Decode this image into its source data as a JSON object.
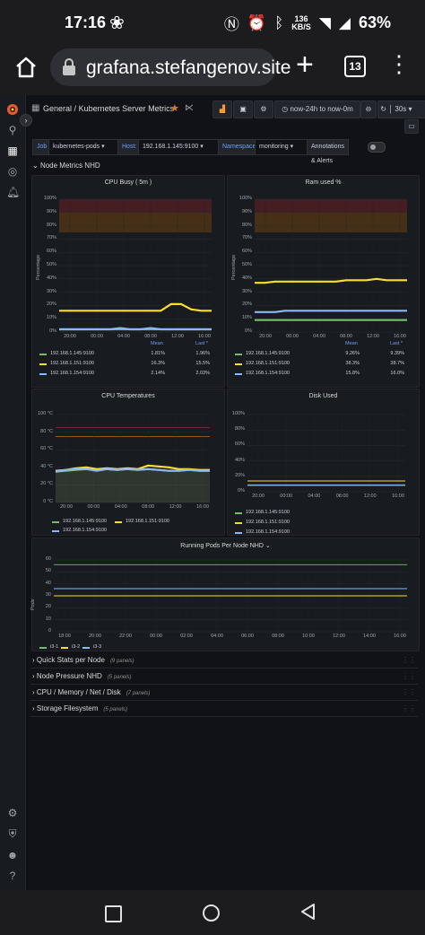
{
  "status_bar": {
    "time": "17:16",
    "network_speed": "136",
    "network_unit": "KB/S",
    "battery": "63%"
  },
  "browser": {
    "url": "grafana.stefangenov.site",
    "tab_count": "13"
  },
  "toolbar": {
    "breadcrumb_root": "General",
    "breadcrumb_sep": "/",
    "dashboard_title": "Kubernetes Server Metrics",
    "time_range": "now-24h to now-0m",
    "refresh_interval": "30s"
  },
  "variables": {
    "job_label": "Job",
    "job_value": "kubernetes-pods",
    "host_label": "Host:",
    "host_value": "192.168.1.145:9100",
    "namespace_label": "Namespace",
    "namespace_value": "monitoring",
    "annotations_label": "Annotations & Alerts"
  },
  "rows": {
    "node_metrics": "Node Metrics NHD",
    "quick_stats": "Quick Stats per Node",
    "quick_stats_count": "(9 panels)",
    "node_pressure": "Node Pressure NHD",
    "node_pressure_count": "(5 panels)",
    "cpu_mem": "CPU / Memory / Net / Disk",
    "cpu_mem_count": "(7 panels)",
    "storage": "Storage Filesystem",
    "storage_count": "(5 panels)"
  },
  "colors": {
    "green": "#73bf69",
    "yellow": "#fade2a",
    "blue": "#8ab8ff",
    "orange": "#ff9830",
    "red_band": "#4a1e22",
    "orange_band": "#4a3215",
    "accent": "#6e9fff"
  },
  "legend_headers": {
    "mean": "Mean",
    "last": "Last *"
  },
  "chart_data": [
    {
      "id": "cpu_busy",
      "type": "line",
      "title": "CPU Busy ( 5m )",
      "ylabel": "Percentage",
      "ylim": [
        0,
        100
      ],
      "yticks": [
        "0%",
        "10%",
        "20%",
        "30%",
        "40%",
        "50%",
        "60%",
        "70%",
        "80%",
        "90%",
        "100%"
      ],
      "xticks": [
        "20:00",
        "00:00",
        "04:00",
        "08:00",
        "12:00",
        "16:00"
      ],
      "thresholds": [
        {
          "from": 75,
          "to": 90,
          "color": "orange"
        },
        {
          "from": 90,
          "to": 100,
          "color": "red"
        }
      ],
      "series": [
        {
          "name": "192.168.1.145:9100",
          "color": "green",
          "mean": "1.81%",
          "last": "1.96%",
          "values": [
            2,
            2,
            2,
            2,
            2,
            2,
            2,
            2,
            2,
            2,
            2,
            2,
            2,
            2,
            2,
            2
          ]
        },
        {
          "name": "192.168.1.151:9100",
          "color": "yellow",
          "mean": "16.3%",
          "last": "15.5%",
          "values": [
            16,
            16,
            16,
            16,
            16,
            16,
            16,
            16,
            16,
            16,
            16,
            21,
            21,
            17,
            16,
            16
          ]
        },
        {
          "name": "192.168.1.154:9100",
          "color": "blue",
          "mean": "2.14%",
          "last": "2.03%",
          "values": [
            2,
            2,
            2,
            2,
            2,
            2,
            3,
            2,
            2,
            3,
            2,
            2,
            2,
            2,
            2,
            2
          ]
        }
      ]
    },
    {
      "id": "ram_used",
      "type": "line",
      "title": "Ram used %",
      "ylabel": "Percentage",
      "ylim": [
        0,
        100
      ],
      "yticks": [
        "0%",
        "10%",
        "20%",
        "30%",
        "40%",
        "50%",
        "60%",
        "70%",
        "80%",
        "90%",
        "100%"
      ],
      "xticks": [
        "20:00",
        "00:00",
        "04:00",
        "08:00",
        "12:00",
        "16:00"
      ],
      "thresholds": [
        {
          "from": 75,
          "to": 90,
          "color": "orange"
        },
        {
          "from": 90,
          "to": 100,
          "color": "red"
        }
      ],
      "series": [
        {
          "name": "192.168.1.145:9100",
          "color": "green",
          "mean": "9.26%",
          "last": "9.39%",
          "values": [
            9,
            9,
            9,
            9,
            9,
            9,
            9,
            9,
            9,
            9,
            9,
            9,
            9,
            9,
            9,
            9
          ]
        },
        {
          "name": "192.168.1.151:9100",
          "color": "yellow",
          "mean": "38.3%",
          "last": "38.7%",
          "values": [
            37,
            37,
            38,
            38,
            38,
            38,
            38,
            38,
            38,
            39,
            39,
            39,
            40,
            39,
            39,
            39
          ]
        },
        {
          "name": "192.168.1.154:9100",
          "color": "blue",
          "mean": "15.8%",
          "last": "16.0%",
          "values": [
            15,
            15,
            15,
            16,
            16,
            16,
            16,
            16,
            16,
            16,
            16,
            16,
            16,
            16,
            16,
            16
          ]
        }
      ]
    },
    {
      "id": "cpu_temp",
      "type": "line",
      "title": "CPU Temperatures",
      "ylim": [
        0,
        100
      ],
      "yticks": [
        "0 °C",
        "20 °C",
        "40 °C",
        "60 °C",
        "80 °C",
        "100 °C"
      ],
      "xticks": [
        "20:00",
        "00:00",
        "04:00",
        "08:00",
        "12:00",
        "16:00"
      ],
      "thresholds": [
        {
          "at": 75,
          "color": "orange"
        },
        {
          "at": 85,
          "color": "red"
        }
      ],
      "series": [
        {
          "name": "192.168.1.145:9100",
          "color": "green",
          "values": [
            35,
            36,
            37,
            38,
            37,
            38,
            37,
            38,
            37,
            38,
            37,
            36,
            36,
            37,
            36,
            36
          ]
        },
        {
          "name": "192.168.1.151:9100",
          "color": "yellow",
          "values": [
            36,
            37,
            39,
            40,
            38,
            39,
            38,
            39,
            38,
            42,
            41,
            40,
            38,
            38,
            37,
            37
          ]
        },
        {
          "name": "192.168.1.154:9100",
          "color": "blue",
          "values": [
            35,
            37,
            38,
            38,
            36,
            38,
            37,
            38,
            37,
            38,
            37,
            36,
            36,
            37,
            36,
            36
          ]
        }
      ]
    },
    {
      "id": "disk_used",
      "type": "line",
      "title": "Disk Used",
      "ylim": [
        0,
        100
      ],
      "yticks": [
        "0%",
        "20%",
        "40%",
        "60%",
        "80%",
        "100%"
      ],
      "xticks": [
        "20:00",
        "00:00",
        "04:00",
        "08:00",
        "12:00",
        "16:00"
      ],
      "series": [
        {
          "name": "192.168.1.145:9100",
          "color": "green",
          "values": [
            8,
            8,
            8,
            8,
            8,
            8,
            8,
            8,
            8,
            8,
            8,
            8,
            8,
            8,
            8,
            8
          ]
        },
        {
          "name": "192.168.1.151:9100",
          "color": "yellow",
          "values": [
            14,
            14,
            14,
            14,
            14,
            14,
            14,
            14,
            14,
            14,
            14,
            14,
            14,
            14,
            14,
            14
          ]
        },
        {
          "name": "192.168.1.154:9100",
          "color": "blue",
          "values": [
            9,
            9,
            9,
            9,
            9,
            9,
            9,
            9,
            9,
            9,
            9,
            9,
            9,
            9,
            9,
            9
          ]
        }
      ]
    },
    {
      "id": "running_pods",
      "type": "line",
      "title": "Running Pods Per Node NHD",
      "ylabel": "Pods",
      "ylim": [
        0,
        60
      ],
      "yticks": [
        "0",
        "10",
        "20",
        "30",
        "40",
        "50",
        "60"
      ],
      "xticks": [
        "18:00",
        "20:00",
        "22:00",
        "00:00",
        "02:00",
        "04:00",
        "06:00",
        "08:00",
        "10:00",
        "12:00",
        "14:00",
        "16:00"
      ],
      "series": [
        {
          "name": "i3-1",
          "color": "green",
          "values": [
            56,
            56,
            56,
            56,
            56,
            56,
            56,
            56,
            56,
            56,
            56,
            56
          ]
        },
        {
          "name": "i3-2",
          "color": "yellow",
          "values": [
            30,
            30,
            30,
            30,
            30,
            30,
            30,
            30,
            30,
            30,
            30,
            30
          ]
        },
        {
          "name": "i3-3",
          "color": "blue",
          "values": [
            36,
            36,
            36,
            36,
            36,
            36,
            36,
            36,
            36,
            36,
            36,
            36
          ]
        }
      ]
    }
  ]
}
